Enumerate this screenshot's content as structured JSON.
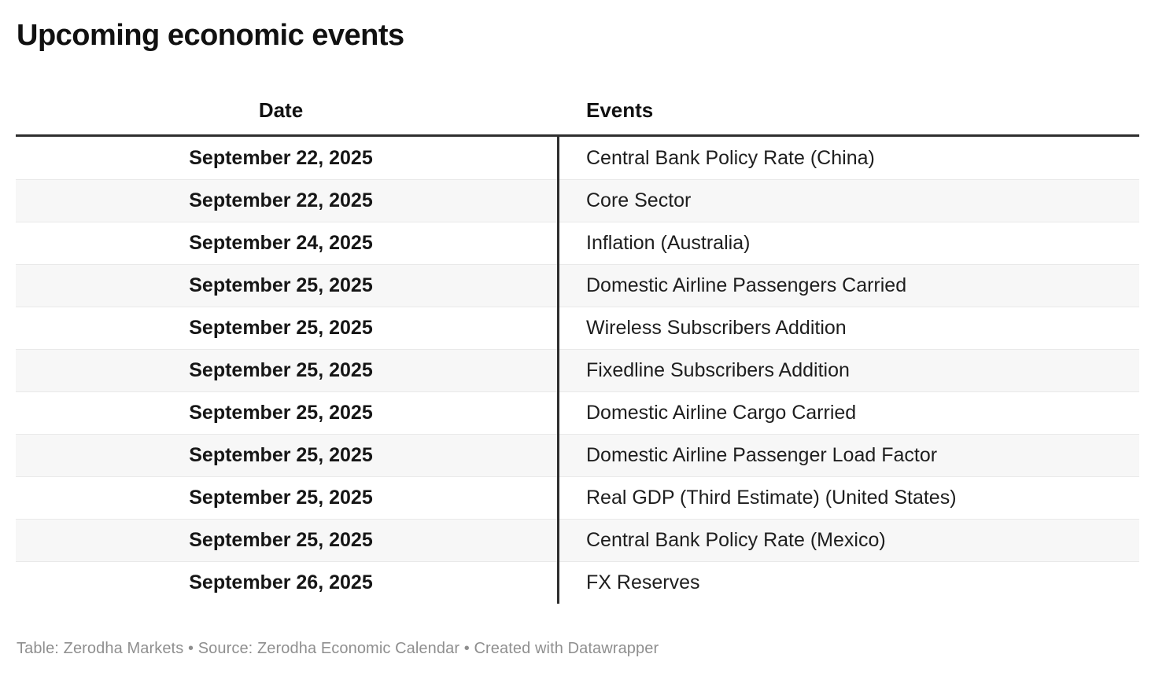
{
  "title": "Upcoming economic events",
  "chart_data": {
    "type": "table",
    "title": "Upcoming economic events",
    "columns": [
      "Date",
      "Events"
    ],
    "rows": [
      {
        "date": "September 22, 2025",
        "event": "Central Bank Policy Rate (China)"
      },
      {
        "date": "September 22, 2025",
        "event": "Core Sector"
      },
      {
        "date": "September 24, 2025",
        "event": "Inflation (Australia)"
      },
      {
        "date": "September 25, 2025",
        "event": "Domestic Airline Passengers Carried"
      },
      {
        "date": "September 25, 2025",
        "event": "Wireless Subscribers Addition"
      },
      {
        "date": "September 25, 2025",
        "event": "Fixedline Subscribers Addition"
      },
      {
        "date": "September 25, 2025",
        "event": "Domestic Airline Cargo Carried"
      },
      {
        "date": "September 25, 2025",
        "event": "Domestic Airline Passenger Load Factor"
      },
      {
        "date": "September 25, 2025",
        "event": "Real GDP (Third Estimate) (United States)"
      },
      {
        "date": "September 25, 2025",
        "event": "Central Bank Policy Rate (Mexico)"
      },
      {
        "date": "September 26, 2025",
        "event": "FX Reserves"
      }
    ],
    "layout_hints": {
      "date_column_align": "center",
      "events_column_align": "left",
      "alternating_row_shading": true,
      "header_rule": "thick-top-border",
      "column_divider": "vertical-dark-rule"
    }
  },
  "footer": {
    "attribution": "Table: Zerodha Markets • Source: Zerodha Economic Calendar • Created with Datawrapper"
  },
  "colors": {
    "background": "#ffffff",
    "rule_dark": "#2e2e2e",
    "row_alt_background": "#f7f7f7",
    "row_separator": "#e9e9e9",
    "text_primary": "#1e1e1e",
    "attribution_text": "#8f8f8f"
  }
}
